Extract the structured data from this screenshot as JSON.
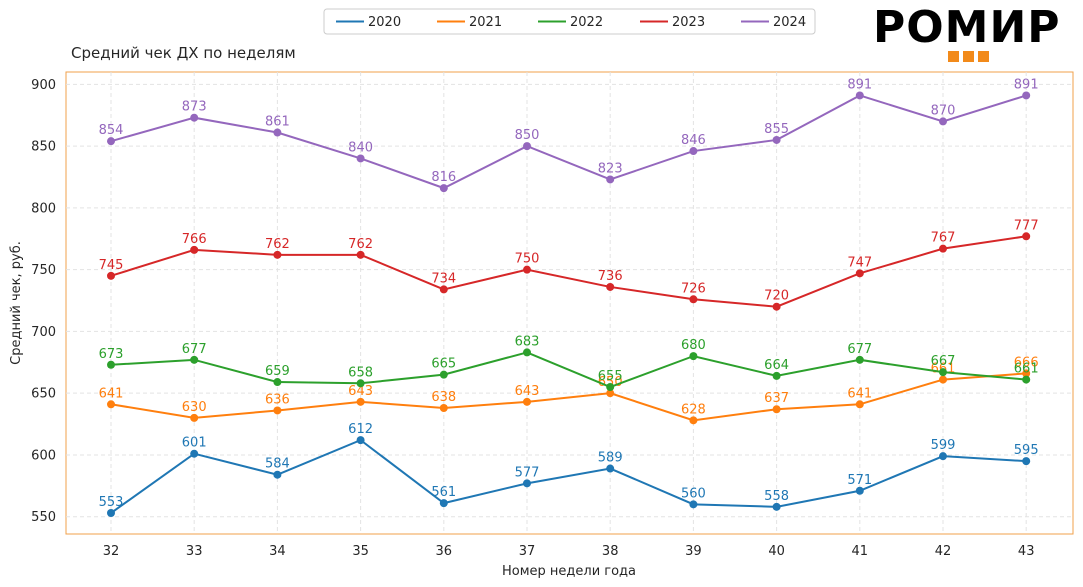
{
  "chart_data": {
    "type": "line",
    "title": "Средний чек ДХ по неделям",
    "xlabel": "Номер недели года",
    "ylabel": "Средний чек, руб.",
    "categories": [
      "32",
      "33",
      "34",
      "35",
      "36",
      "37",
      "38",
      "39",
      "40",
      "41",
      "42",
      "43"
    ],
    "yticks": [
      "550",
      "600",
      "650",
      "700",
      "750",
      "800",
      "850",
      "900"
    ],
    "ylim": [
      536,
      910
    ],
    "grid": true,
    "legend_position": "top-center",
    "series": [
      {
        "name": "2020",
        "color": "#1f77b4",
        "values": [
          553,
          601,
          584,
          612,
          561,
          577,
          589,
          560,
          558,
          571,
          599,
          595
        ]
      },
      {
        "name": "2021",
        "color": "#ff7f0e",
        "values": [
          641,
          630,
          636,
          643,
          638,
          643,
          650,
          628,
          637,
          641,
          661,
          666
        ]
      },
      {
        "name": "2022",
        "color": "#2ca02c",
        "values": [
          673,
          677,
          659,
          658,
          665,
          683,
          655,
          680,
          664,
          677,
          667,
          661
        ]
      },
      {
        "name": "2023",
        "color": "#d62728",
        "values": [
          745,
          766,
          762,
          762,
          734,
          750,
          736,
          726,
          720,
          747,
          767,
          777
        ]
      },
      {
        "name": "2024",
        "color": "#9467bd",
        "values": [
          854,
          873,
          861,
          840,
          816,
          850,
          823,
          846,
          855,
          891,
          870,
          891
        ]
      }
    ],
    "frame_color": "#f0a04b"
  },
  "logo": {
    "text": "РОМИР",
    "accent": "#f28a1a"
  }
}
